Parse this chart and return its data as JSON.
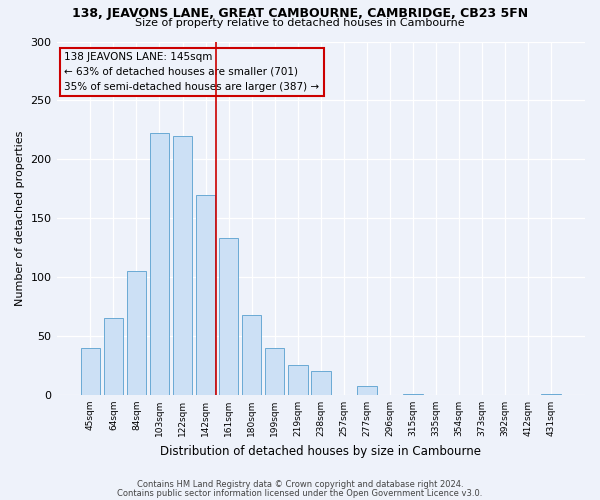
{
  "title1": "138, JEAVONS LANE, GREAT CAMBOURNE, CAMBRIDGE, CB23 5FN",
  "title2": "Size of property relative to detached houses in Cambourne",
  "xlabel": "Distribution of detached houses by size in Cambourne",
  "ylabel": "Number of detached properties",
  "bar_labels": [
    "45sqm",
    "64sqm",
    "84sqm",
    "103sqm",
    "122sqm",
    "142sqm",
    "161sqm",
    "180sqm",
    "199sqm",
    "219sqm",
    "238sqm",
    "257sqm",
    "277sqm",
    "296sqm",
    "315sqm",
    "335sqm",
    "354sqm",
    "373sqm",
    "392sqm",
    "412sqm",
    "431sqm"
  ],
  "bar_values": [
    40,
    65,
    105,
    222,
    220,
    170,
    133,
    68,
    40,
    25,
    20,
    0,
    8,
    0,
    1,
    0,
    0,
    0,
    0,
    0,
    1
  ],
  "bar_color": "#cce0f5",
  "bar_edge_color": "#6aaad4",
  "ylim": [
    0,
    300
  ],
  "yticks": [
    0,
    50,
    100,
    150,
    200,
    250,
    300
  ],
  "vline_x": 5.45,
  "vline_color": "#cc0000",
  "annotation_title": "138 JEAVONS LANE: 145sqm",
  "annotation_line1": "← 63% of detached houses are smaller (701)",
  "annotation_line2": "35% of semi-detached houses are larger (387) →",
  "annotation_box_color": "#cc0000",
  "bg_color": "#eef2fa",
  "grid_color": "#ffffff",
  "footer1": "Contains HM Land Registry data © Crown copyright and database right 2024.",
  "footer2": "Contains public sector information licensed under the Open Government Licence v3.0."
}
